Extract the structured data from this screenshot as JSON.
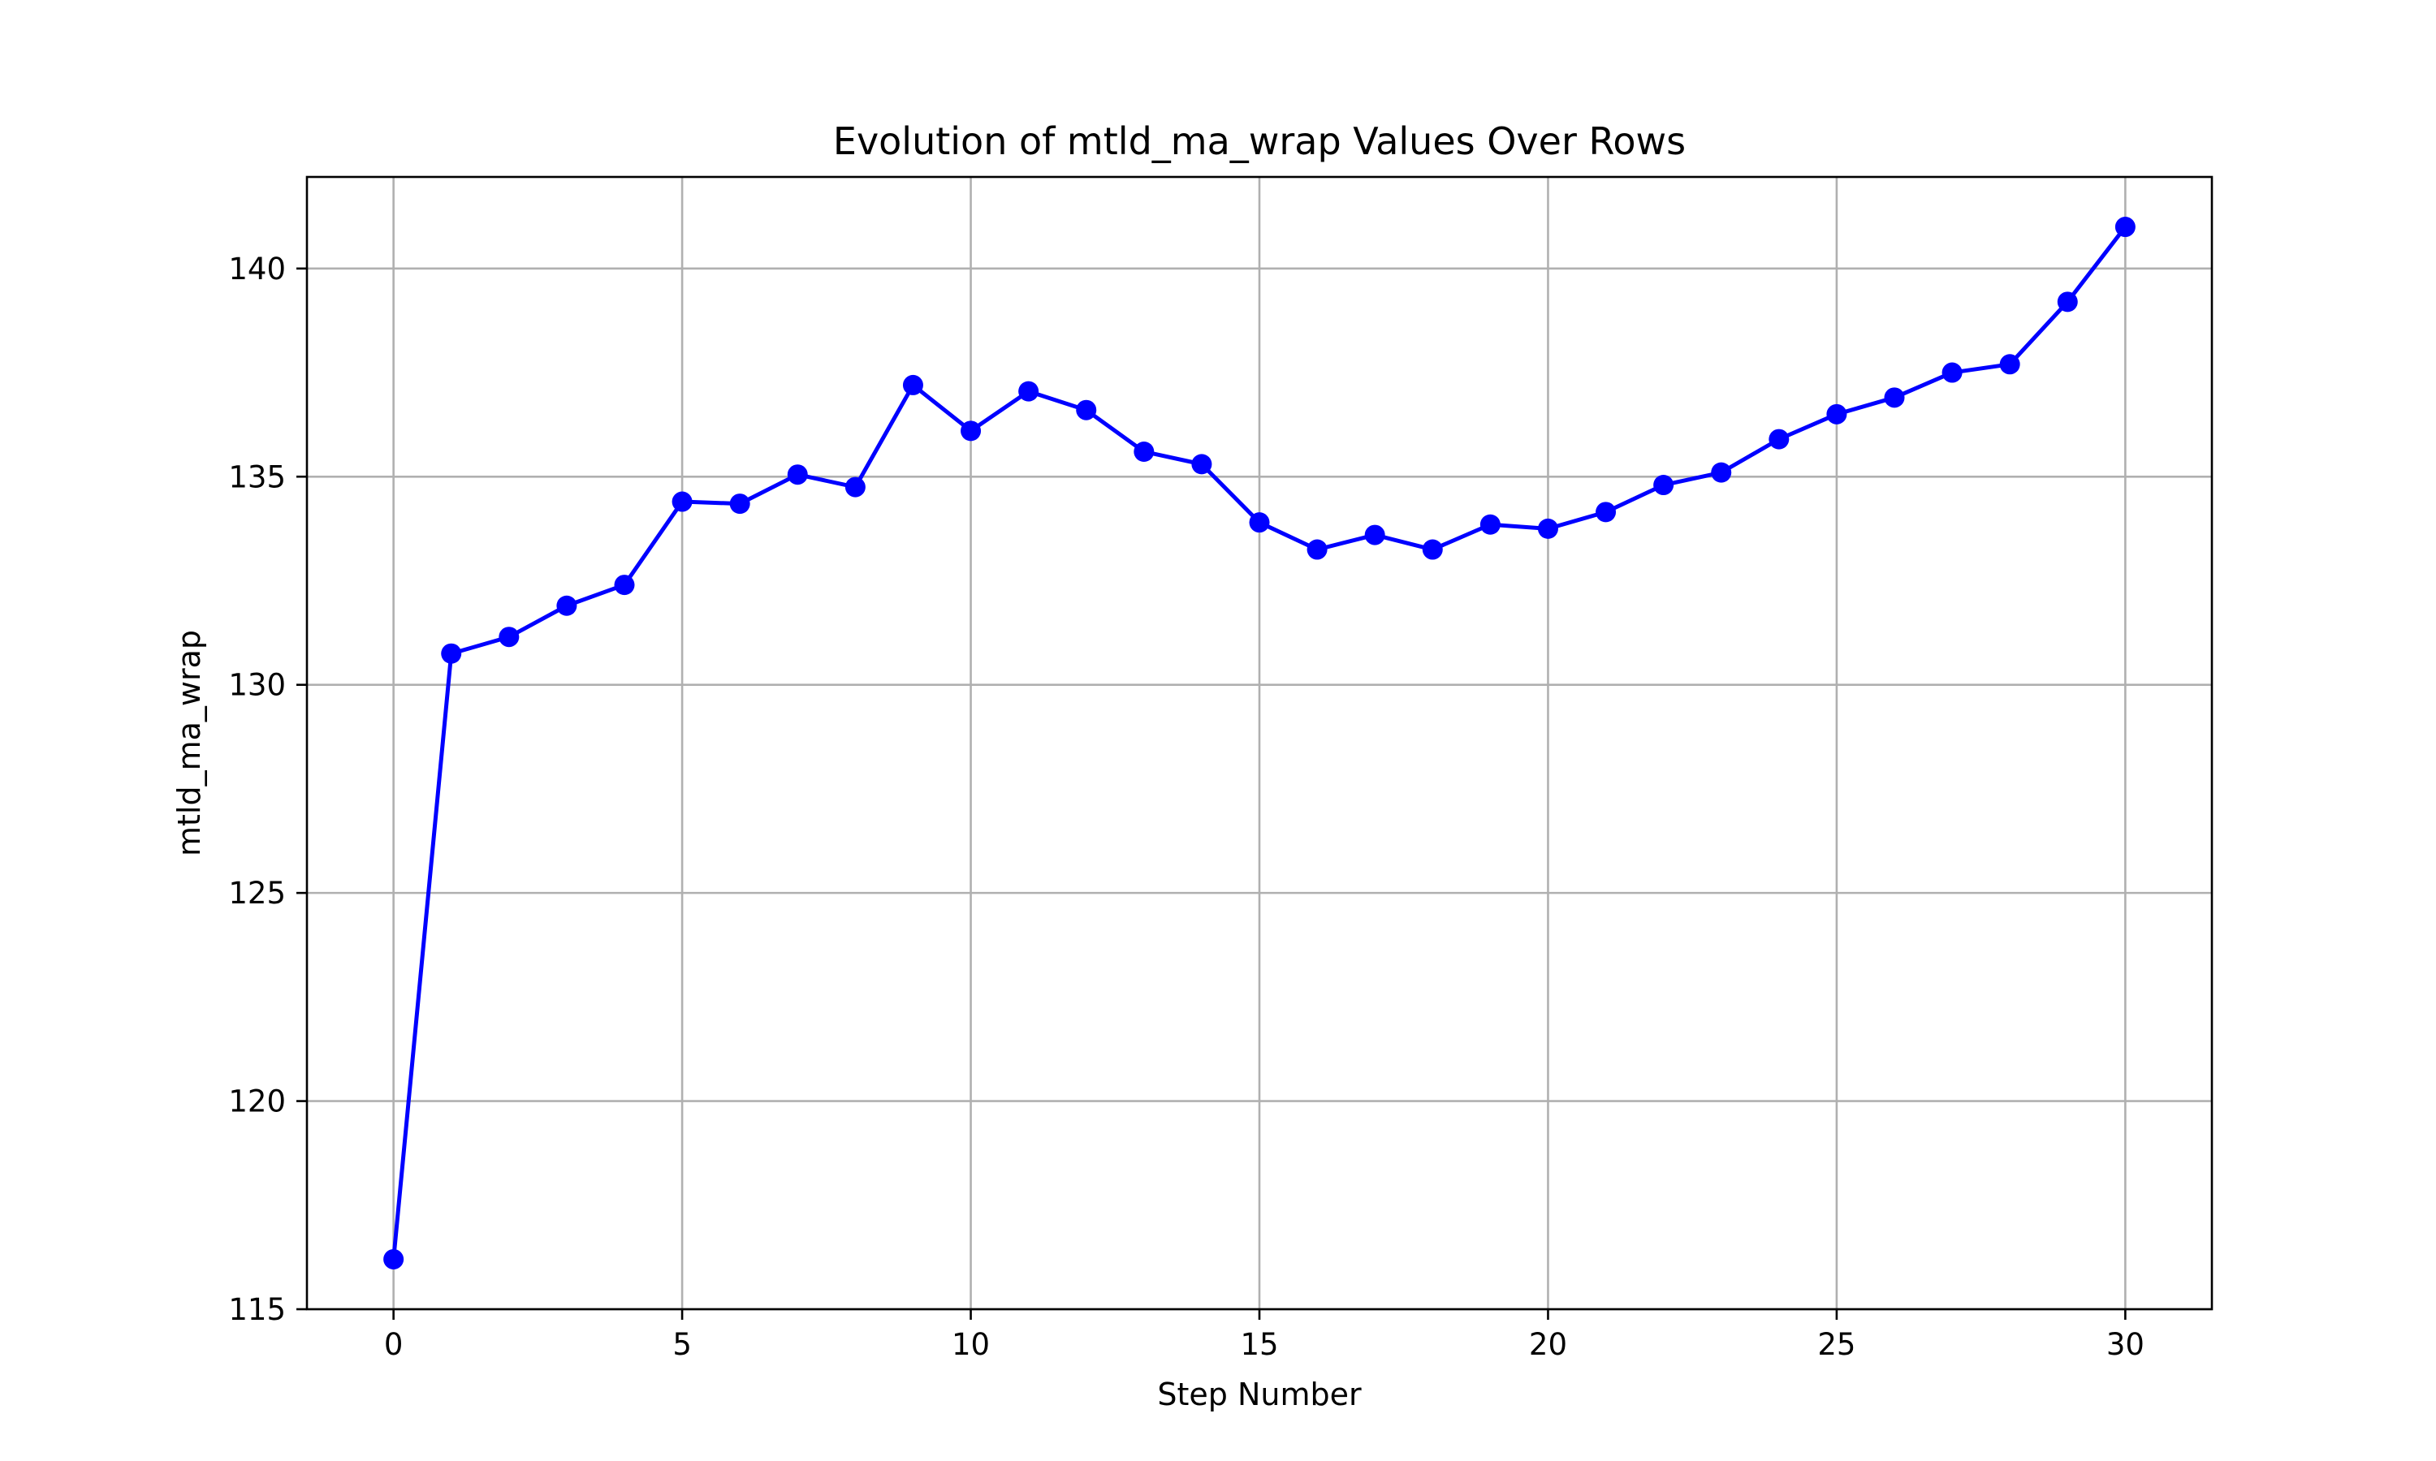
{
  "chart_data": {
    "type": "line",
    "title": "Evolution of mtld_ma_wrap Values Over Rows",
    "xlabel": "Step Number",
    "ylabel": "mtld_ma_wrap",
    "xlim": [
      -1.5,
      31.5
    ],
    "ylim": [
      115,
      142.2
    ],
    "xticks": [
      0,
      5,
      10,
      15,
      20,
      25,
      30
    ],
    "yticks": [
      115,
      120,
      125,
      130,
      135,
      140
    ],
    "grid": true,
    "legend": "none",
    "series": [
      {
        "color": "#0000ff",
        "marker": "circle",
        "x": [
          0,
          1,
          2,
          3,
          4,
          5,
          6,
          7,
          8,
          9,
          10,
          11,
          12,
          13,
          14,
          15,
          16,
          17,
          18,
          19,
          20,
          21,
          22,
          23,
          24,
          25,
          26,
          27,
          28,
          29,
          30
        ],
        "values": [
          116.2,
          130.75,
          131.15,
          131.9,
          132.4,
          134.4,
          134.35,
          135.05,
          134.75,
          137.2,
          136.1,
          137.05,
          136.6,
          135.6,
          135.3,
          133.9,
          133.25,
          133.6,
          133.25,
          133.85,
          133.75,
          134.15,
          134.8,
          135.1,
          135.9,
          136.5,
          136.9,
          137.5,
          137.7,
          139.2,
          141.0
        ]
      }
    ]
  }
}
